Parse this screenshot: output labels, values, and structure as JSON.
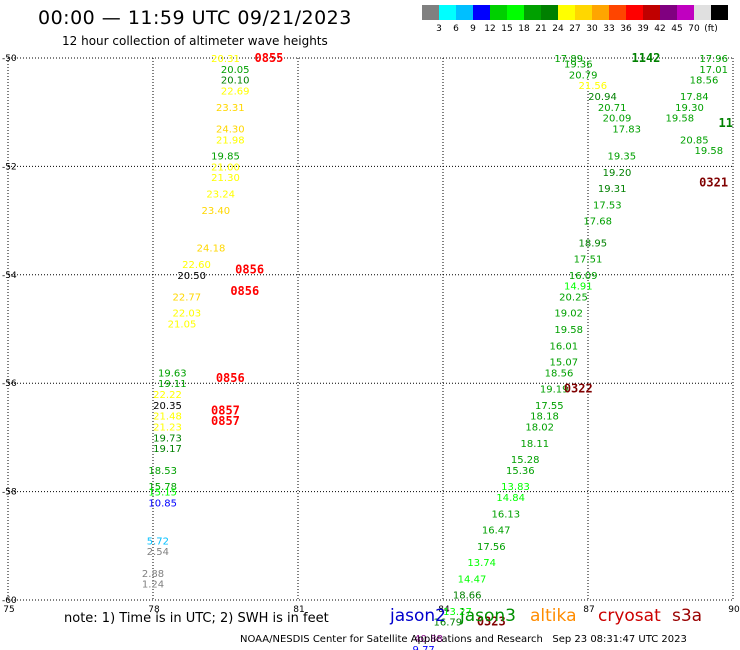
{
  "header": {
    "title": "00:00 — 11:59 UTC 09/21/2023",
    "subtitle": "12 hour collection of altimeter wave heights"
  },
  "colorbar": {
    "swatches": [
      "#808080",
      "#00ffff",
      "#00bfff",
      "#0000ff",
      "#00d000",
      "#00ff00",
      "#00a000",
      "#008000",
      "#ffff00",
      "#ffd700",
      "#ffa500",
      "#ff4500",
      "#ff0000",
      "#c00000",
      "#800080",
      "#c000c0",
      "#e0e0e0",
      "#000000"
    ],
    "labels": [
      "3",
      "6",
      "9",
      "12",
      "15",
      "18",
      "21",
      "24",
      "27",
      "30",
      "33",
      "36",
      "39",
      "42",
      "45",
      "70",
      "(ft)"
    ]
  },
  "map": {
    "x_ticks": [
      "75",
      "78",
      "81",
      "84",
      "87",
      "90"
    ],
    "y_ticks": [
      "-50",
      "-52",
      "-54",
      "-56",
      "-58",
      "-60"
    ],
    "lon_range": [
      75,
      90
    ],
    "lat_range": [
      -60,
      -50
    ]
  },
  "chart_data": {
    "type": "scatter",
    "xlabel": "",
    "ylabel": "",
    "xlim": [
      75,
      90
    ],
    "ylim": [
      -60,
      -50
    ],
    "grid": true,
    "points": [
      {
        "lon": 79.5,
        "lat": -50.0,
        "swh": "20.31",
        "color": "#ffff00"
      },
      {
        "lon": 79.7,
        "lat": -50.2,
        "swh": "20.05",
        "color": "#00a000"
      },
      {
        "lon": 79.7,
        "lat": -50.4,
        "swh": "20.10",
        "color": "#008000"
      },
      {
        "lon": 79.7,
        "lat": -50.6,
        "swh": "22.69",
        "color": "#ffff00"
      },
      {
        "lon": 79.6,
        "lat": -50.9,
        "swh": "23.31",
        "color": "#ffd700"
      },
      {
        "lon": 79.6,
        "lat": -51.3,
        "swh": "24.30",
        "color": "#ffd700"
      },
      {
        "lon": 79.6,
        "lat": -51.5,
        "swh": "21.98",
        "color": "#ffff00"
      },
      {
        "lon": 79.5,
        "lat": -51.8,
        "swh": "19.85",
        "color": "#00a000"
      },
      {
        "lon": 79.5,
        "lat": -52.0,
        "swh": "21.00",
        "color": "#ffff00"
      },
      {
        "lon": 79.5,
        "lat": -52.2,
        "swh": "21.30",
        "color": "#ffff00"
      },
      {
        "lon": 79.4,
        "lat": -52.5,
        "swh": "23.24",
        "color": "#ffff00"
      },
      {
        "lon": 79.3,
        "lat": -52.8,
        "swh": "23.40",
        "color": "#ffd700"
      },
      {
        "lon": 79.2,
        "lat": -53.5,
        "swh": "24.18",
        "color": "#ffd700"
      },
      {
        "lon": 78.9,
        "lat": -53.8,
        "swh": "22.60",
        "color": "#ffff00"
      },
      {
        "lon": 78.8,
        "lat": -54.0,
        "swh": "20.50",
        "color": "#000000"
      },
      {
        "lon": 78.7,
        "lat": -54.4,
        "swh": "22.77",
        "color": "#ffd700"
      },
      {
        "lon": 78.7,
        "lat": -54.7,
        "swh": "22.03",
        "color": "#ffff00"
      },
      {
        "lon": 78.6,
        "lat": -54.9,
        "swh": "21.05",
        "color": "#ffff00"
      },
      {
        "lon": 78.4,
        "lat": -55.8,
        "swh": "19.63",
        "color": "#00a000"
      },
      {
        "lon": 78.4,
        "lat": -56.0,
        "swh": "19.11",
        "color": "#00a000"
      },
      {
        "lon": 78.3,
        "lat": -56.2,
        "swh": "22.22",
        "color": "#ffff00"
      },
      {
        "lon": 78.3,
        "lat": -56.4,
        "swh": "20.35",
        "color": "#000000"
      },
      {
        "lon": 78.3,
        "lat": -56.6,
        "swh": "21.48",
        "color": "#ffff00"
      },
      {
        "lon": 78.3,
        "lat": -56.8,
        "swh": "21.23",
        "color": "#ffff00"
      },
      {
        "lon": 78.3,
        "lat": -57.0,
        "swh": "19.73",
        "color": "#008000"
      },
      {
        "lon": 78.3,
        "lat": -57.2,
        "swh": "19.17",
        "color": "#008000"
      },
      {
        "lon": 78.2,
        "lat": -57.6,
        "swh": "18.53",
        "color": "#00a000"
      },
      {
        "lon": 78.2,
        "lat": -57.9,
        "swh": "15.78",
        "color": "#00a000"
      },
      {
        "lon": 78.2,
        "lat": -58.0,
        "swh": "15.15",
        "color": "#00ff00"
      },
      {
        "lon": 78.2,
        "lat": -58.2,
        "swh": "10.85",
        "color": "#0000ff"
      },
      {
        "lon": 78.1,
        "lat": -58.9,
        "swh": "5.72",
        "color": "#00bfff"
      },
      {
        "lon": 78.1,
        "lat": -59.1,
        "swh": "2.54",
        "color": "#808080"
      },
      {
        "lon": 78.0,
        "lat": -59.5,
        "swh": "2.88",
        "color": "#808080"
      },
      {
        "lon": 78.0,
        "lat": -59.7,
        "swh": "1.24",
        "color": "#808080"
      },
      {
        "lon": 86.6,
        "lat": -50.0,
        "swh": "17.89",
        "color": "#00a000"
      },
      {
        "lon": 86.8,
        "lat": -50.1,
        "swh": "19.36",
        "color": "#00a000"
      },
      {
        "lon": 86.9,
        "lat": -50.3,
        "swh": "20.79",
        "color": "#00a000"
      },
      {
        "lon": 87.1,
        "lat": -50.5,
        "swh": "21.56",
        "color": "#ffff00"
      },
      {
        "lon": 87.3,
        "lat": -50.7,
        "swh": "20.94",
        "color": "#008000"
      },
      {
        "lon": 87.5,
        "lat": -50.9,
        "swh": "20.71",
        "color": "#00a000"
      },
      {
        "lon": 87.6,
        "lat": -51.1,
        "swh": "20.09",
        "color": "#00a000"
      },
      {
        "lon": 87.8,
        "lat": -51.3,
        "swh": "17.83",
        "color": "#00a000"
      },
      {
        "lon": 87.7,
        "lat": -51.8,
        "swh": "19.35",
        "color": "#00a000"
      },
      {
        "lon": 87.6,
        "lat": -52.1,
        "swh": "19.20",
        "color": "#008000"
      },
      {
        "lon": 87.5,
        "lat": -52.4,
        "swh": "19.31",
        "color": "#008000"
      },
      {
        "lon": 87.4,
        "lat": -52.7,
        "swh": "17.53",
        "color": "#00a000"
      },
      {
        "lon": 87.2,
        "lat": -53.0,
        "swh": "17.68",
        "color": "#00a000"
      },
      {
        "lon": 87.1,
        "lat": -53.4,
        "swh": "18.95",
        "color": "#008000"
      },
      {
        "lon": 87.0,
        "lat": -53.7,
        "swh": "17.51",
        "color": "#00a000"
      },
      {
        "lon": 86.9,
        "lat": -54.0,
        "swh": "16.09",
        "color": "#00a000"
      },
      {
        "lon": 86.8,
        "lat": -54.2,
        "swh": "14.91",
        "color": "#00ff00"
      },
      {
        "lon": 86.7,
        "lat": -54.4,
        "swh": "20.25",
        "color": "#00a000"
      },
      {
        "lon": 86.6,
        "lat": -54.7,
        "swh": "19.02",
        "color": "#00a000"
      },
      {
        "lon": 86.6,
        "lat": -55.0,
        "swh": "19.58",
        "color": "#00a000"
      },
      {
        "lon": 86.5,
        "lat": -55.3,
        "swh": "16.01",
        "color": "#00a000"
      },
      {
        "lon": 86.5,
        "lat": -55.6,
        "swh": "15.07",
        "color": "#00a000"
      },
      {
        "lon": 86.4,
        "lat": -55.8,
        "swh": "18.56",
        "color": "#00a000"
      },
      {
        "lon": 86.3,
        "lat": -56.1,
        "swh": "19.19",
        "color": "#00a000"
      },
      {
        "lon": 86.2,
        "lat": -56.4,
        "swh": "17.55",
        "color": "#00a000"
      },
      {
        "lon": 86.1,
        "lat": -56.6,
        "swh": "18.18",
        "color": "#00a000"
      },
      {
        "lon": 86.0,
        "lat": -56.8,
        "swh": "18.02",
        "color": "#00a000"
      },
      {
        "lon": 85.9,
        "lat": -57.1,
        "swh": "18.11",
        "color": "#00a000"
      },
      {
        "lon": 85.7,
        "lat": -57.4,
        "swh": "15.28",
        "color": "#00a000"
      },
      {
        "lon": 85.6,
        "lat": -57.6,
        "swh": "15.36",
        "color": "#00a000"
      },
      {
        "lon": 85.5,
        "lat": -57.9,
        "swh": "13.83",
        "color": "#00ff00"
      },
      {
        "lon": 85.4,
        "lat": -58.1,
        "swh": "14.84",
        "color": "#00ff00"
      },
      {
        "lon": 85.3,
        "lat": -58.4,
        "swh": "16.13",
        "color": "#00a000"
      },
      {
        "lon": 85.1,
        "lat": -58.7,
        "swh": "16.47",
        "color": "#00a000"
      },
      {
        "lon": 85.0,
        "lat": -59.0,
        "swh": "17.56",
        "color": "#00a000"
      },
      {
        "lon": 84.8,
        "lat": -59.3,
        "swh": "13.74",
        "color": "#00ff00"
      },
      {
        "lon": 84.6,
        "lat": -59.6,
        "swh": "14.47",
        "color": "#00ff00"
      },
      {
        "lon": 84.5,
        "lat": -59.9,
        "swh": "18.66",
        "color": "#008000"
      },
      {
        "lon": 84.3,
        "lat": -60.2,
        "swh": "13.27",
        "color": "#00ff00"
      },
      {
        "lon": 84.1,
        "lat": -60.4,
        "swh": "16.79",
        "color": "#008000"
      },
      {
        "lon": 83.7,
        "lat": -60.7,
        "swh": "40.88",
        "color": "#800080"
      },
      {
        "lon": 83.6,
        "lat": -60.9,
        "swh": "9.77",
        "color": "#0000ff"
      },
      {
        "lon": 89.6,
        "lat": -50.0,
        "swh": "17.96",
        "color": "#00a000"
      },
      {
        "lon": 89.6,
        "lat": -50.2,
        "swh": "17.01",
        "color": "#00a000"
      },
      {
        "lon": 89.4,
        "lat": -50.4,
        "swh": "18.56",
        "color": "#00a000"
      },
      {
        "lon": 89.2,
        "lat": -50.7,
        "swh": "17.84",
        "color": "#00a000"
      },
      {
        "lon": 89.1,
        "lat": -50.9,
        "swh": "19.30",
        "color": "#00a000"
      },
      {
        "lon": 88.9,
        "lat": -51.1,
        "swh": "19.58",
        "color": "#00a000"
      },
      {
        "lon": 89.2,
        "lat": -51.5,
        "swh": "20.85",
        "color": "#00a000"
      },
      {
        "lon": 89.5,
        "lat": -51.7,
        "swh": "19.58",
        "color": "#00a000"
      }
    ],
    "time_labels": [
      {
        "lon": 80.1,
        "lat": -50.0,
        "text": "0855",
        "color": "#ff0000"
      },
      {
        "lon": 79.7,
        "lat": -53.9,
        "text": "0856",
        "color": "#ff0000"
      },
      {
        "lon": 79.6,
        "lat": -54.3,
        "text": "0856",
        "color": "#ff0000"
      },
      {
        "lon": 79.3,
        "lat": -55.9,
        "text": "0856",
        "color": "#ff0000"
      },
      {
        "lon": 79.2,
        "lat": -56.5,
        "text": "0857",
        "color": "#ff0000"
      },
      {
        "lon": 79.2,
        "lat": -56.7,
        "text": "0857",
        "color": "#ff0000"
      },
      {
        "lon": 87.9,
        "lat": -50.0,
        "text": "1142",
        "color": "#008000"
      },
      {
        "lon": 89.7,
        "lat": -51.2,
        "text": "11",
        "color": "#008000"
      },
      {
        "lon": 89.3,
        "lat": -52.3,
        "text": "0321",
        "color": "#800000"
      },
      {
        "lon": 86.5,
        "lat": -56.1,
        "text": "0322",
        "color": "#800000"
      },
      {
        "lon": 84.7,
        "lat": -60.4,
        "text": "0323",
        "color": "#800000"
      }
    ]
  },
  "footer": {
    "note": "note: 1) Time is in UTC; 2) SWH is in feet",
    "credit": "NOAA/NESDIS Center for Satellite Applications and Research   Sep 23 08:31:47 UTC 2023",
    "missions": [
      {
        "name": "jason2",
        "color": "#0000cc"
      },
      {
        "name": "jason3",
        "color": "#009000"
      },
      {
        "name": "altika",
        "color": "#ff8c00"
      },
      {
        "name": "cryosat",
        "color": "#cc0000"
      },
      {
        "name": "s3a",
        "color": "#990000"
      }
    ]
  }
}
